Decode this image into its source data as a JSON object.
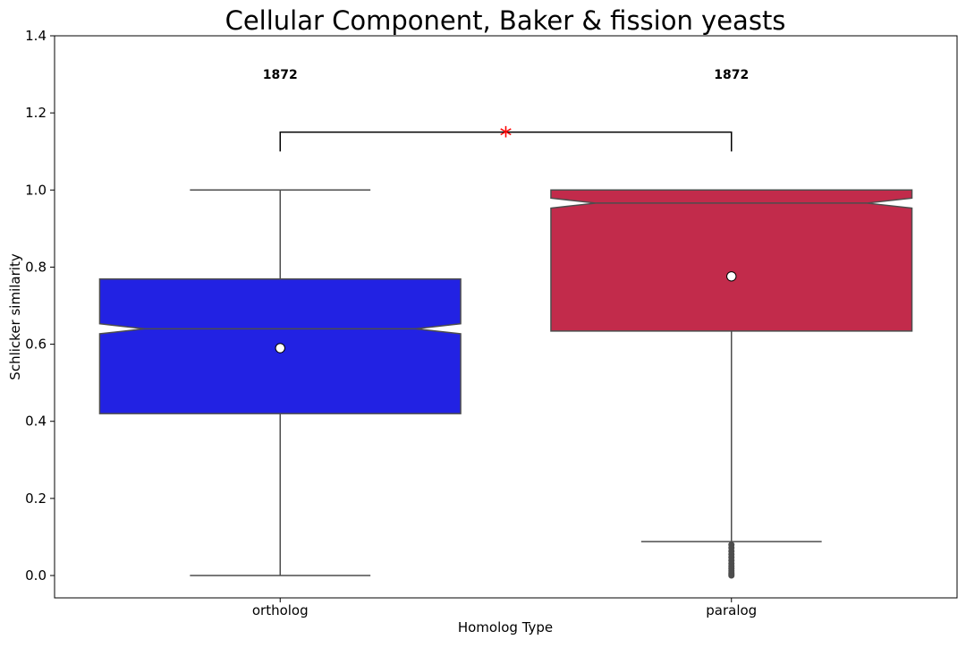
{
  "chart_data": {
    "type": "box",
    "title": "Cellular Component, Baker & fission yeasts",
    "xlabel": "Homolog Type",
    "ylabel": "Schlicker similarity",
    "ylim": [
      -0.058,
      1.4
    ],
    "yticks": [
      0.0,
      0.2,
      0.4,
      0.6,
      0.8,
      1.0,
      1.2,
      1.4
    ],
    "tick_labels": [
      "0.0",
      "0.2",
      "0.4",
      "0.6",
      "0.8",
      "1.0",
      "1.2",
      "1.4"
    ],
    "grid": false,
    "notched": true,
    "categories": [
      "ortholog",
      "paralog"
    ],
    "series": [
      {
        "category": "ortholog",
        "color": "#2222e3",
        "count_label": "1872",
        "whisker_low": 0.0,
        "q1": 0.42,
        "notch_low": 0.627,
        "median": 0.64,
        "notch_high": 0.653,
        "q3": 0.769,
        "whisker_high": 1.0,
        "mean": 0.59,
        "outliers": []
      },
      {
        "category": "paralog",
        "color": "#c22b4b",
        "count_label": "1872",
        "whisker_low": 0.088,
        "q1": 0.634,
        "notch_low": 0.953,
        "median": 0.966,
        "notch_high": 0.979,
        "q3": 1.0,
        "whisker_high": 1.0,
        "mean": 0.776,
        "outliers": [
          0.08,
          0.072,
          0.063,
          0.055,
          0.047,
          0.039,
          0.031,
          0.024,
          0.018,
          0.012,
          0.007,
          0.003,
          0.0
        ]
      }
    ],
    "significance": {
      "pair": [
        "ortholog",
        "paralog"
      ],
      "marker": "*",
      "marker_color": "#ff0000",
      "bracket_y": 1.15,
      "bracket_drop_to": 1.1
    },
    "count_label_y": 1.3
  }
}
